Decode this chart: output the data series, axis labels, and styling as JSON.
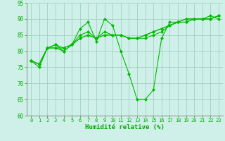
{
  "title": "",
  "xlabel": "Humidité relative (%)",
  "ylabel": "",
  "xlim": [
    -0.5,
    23.5
  ],
  "ylim": [
    60,
    95
  ],
  "yticks": [
    60,
    65,
    70,
    75,
    80,
    85,
    90,
    95
  ],
  "xticks": [
    0,
    1,
    2,
    3,
    4,
    5,
    6,
    7,
    8,
    9,
    10,
    11,
    12,
    13,
    14,
    15,
    16,
    17,
    18,
    19,
    20,
    21,
    22,
    23
  ],
  "background_color": "#cef0e8",
  "grid_color": "#99ccbb",
  "line_color": "#00bb00",
  "marker": "D",
  "series": [
    [
      77,
      75,
      81,
      82,
      80,
      82,
      87,
      89,
      83,
      90,
      88,
      80,
      73,
      65,
      65,
      68,
      84,
      89,
      89,
      90,
      90,
      90,
      91,
      90
    ],
    [
      77,
      76,
      81,
      81,
      80,
      82,
      84,
      85,
      84,
      85,
      85,
      85,
      84,
      84,
      84,
      85,
      86,
      88,
      89,
      89,
      90,
      90,
      90,
      91
    ],
    [
      77,
      76,
      81,
      81,
      81,
      82,
      84,
      85,
      84,
      85,
      85,
      85,
      84,
      84,
      85,
      86,
      87,
      88,
      89,
      89,
      90,
      90,
      90,
      91
    ],
    [
      77,
      76,
      81,
      82,
      81,
      82,
      85,
      86,
      84,
      86,
      85,
      85,
      84,
      84,
      85,
      86,
      87,
      88,
      89,
      90,
      90,
      90,
      90,
      91
    ]
  ]
}
